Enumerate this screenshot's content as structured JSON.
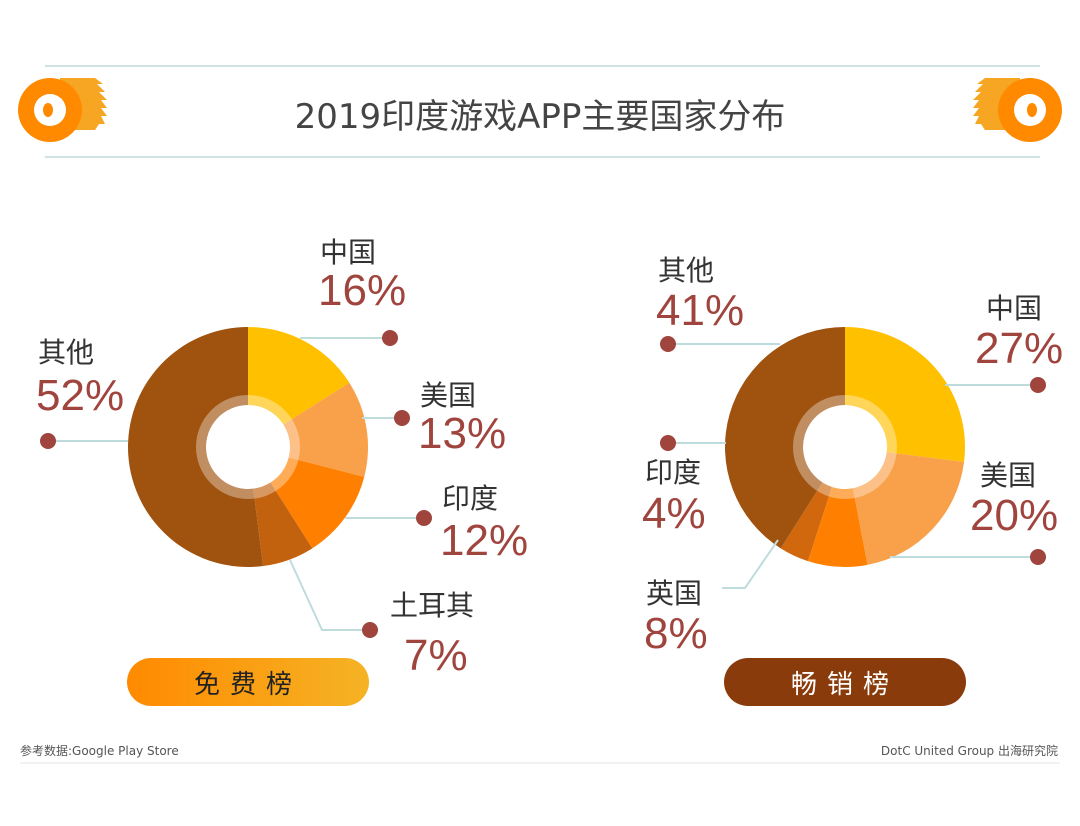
{
  "title": "2019印度游戏APP主要国家分布",
  "footer": {
    "source": "参考数据:Google Play Store",
    "credit": "DotC United Group 出海研究院"
  },
  "chart_data": [
    {
      "type": "pie",
      "subtype": "donut",
      "name": "免费榜",
      "slices": [
        {
          "label": "中国",
          "value": 16,
          "pct": "16%",
          "color": "#FFC000"
        },
        {
          "label": "美国",
          "value": 13,
          "pct": "13%",
          "color": "#F9A04A"
        },
        {
          "label": "印度",
          "value": 12,
          "pct": "12%",
          "color": "#FF8000"
        },
        {
          "label": "土耳其",
          "value": 7,
          "pct": "7%",
          "color": "#C2620F"
        },
        {
          "label": "其他",
          "value": 52,
          "pct": "52%",
          "color": "#A0520F"
        }
      ]
    },
    {
      "type": "pie",
      "subtype": "donut",
      "name": "畅销榜",
      "slices": [
        {
          "label": "中国",
          "value": 27,
          "pct": "27%",
          "color": "#FFC000"
        },
        {
          "label": "美国",
          "value": 20,
          "pct": "20%",
          "color": "#F9A04A"
        },
        {
          "label": "英国",
          "value": 8,
          "pct": "8%",
          "color": "#FF8000"
        },
        {
          "label": "印度",
          "value": 4,
          "pct": "4%",
          "color": "#D2680E"
        },
        {
          "label": "其他",
          "value": 41,
          "pct": "41%",
          "color": "#A0520F"
        }
      ]
    }
  ],
  "colors": {
    "accent": "#FF8A00",
    "percent": "#A0443E",
    "rule": "#CFE3E3"
  }
}
